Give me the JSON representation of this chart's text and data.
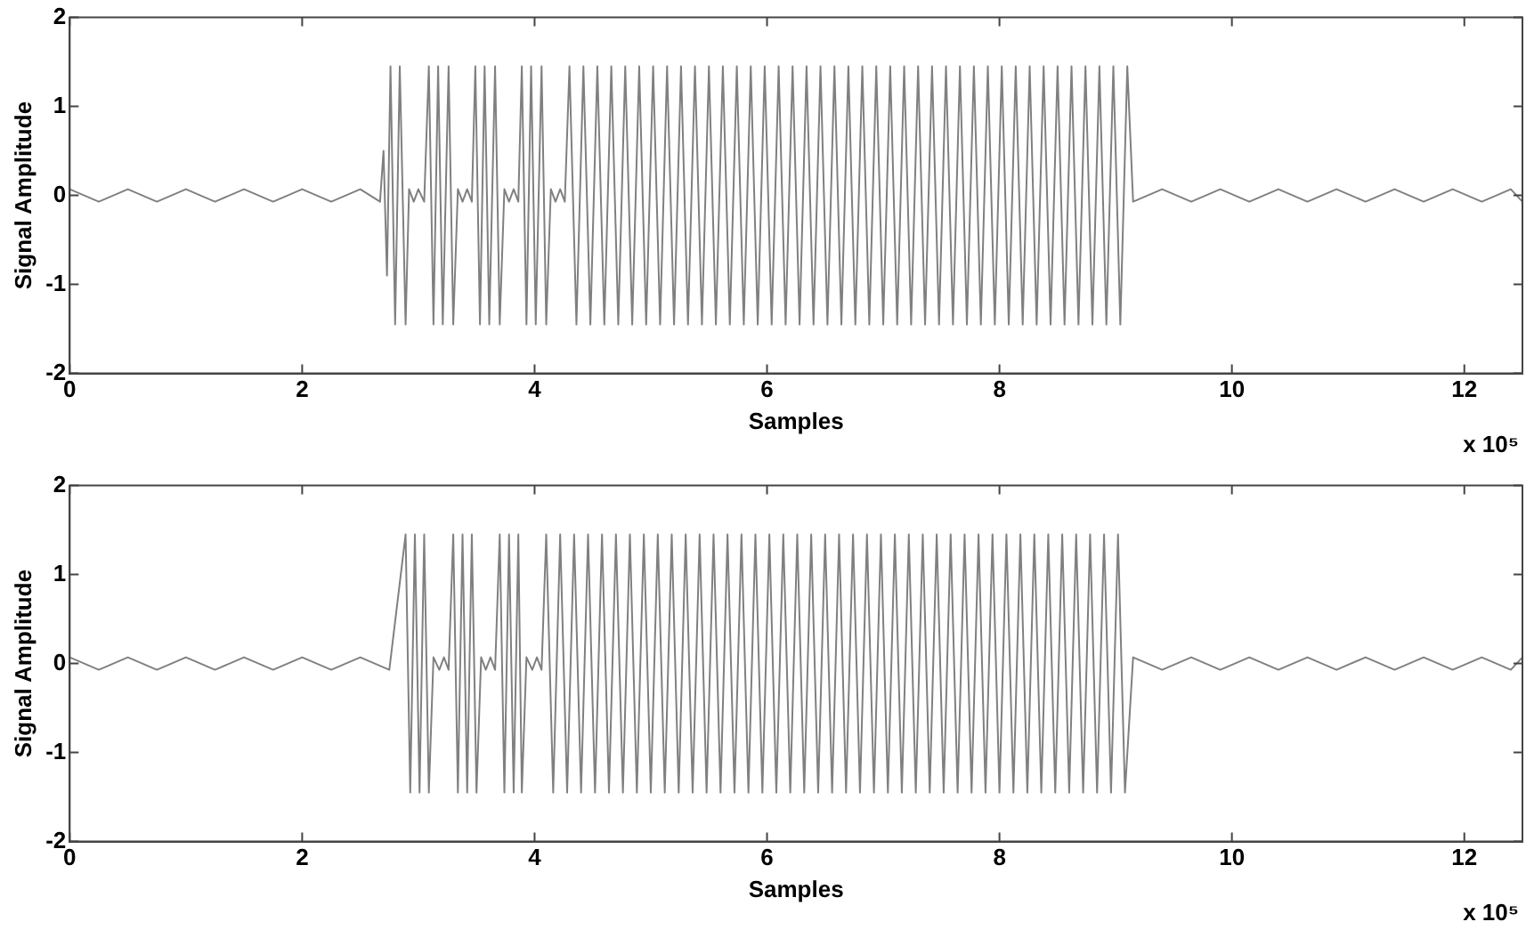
{
  "chart_data": [
    {
      "type": "line",
      "xlabel": "Samples",
      "ylabel": "Signal Amplitude",
      "annotations": [
        "x 10⁵"
      ],
      "xlim": [
        0,
        12.5
      ],
      "xticks": [
        0,
        2,
        4,
        6,
        8,
        10,
        12
      ],
      "ylim": [
        -2,
        2
      ],
      "yticks": [
        -2,
        -1,
        0,
        1,
        2
      ],
      "grid": false,
      "marker": "none",
      "line_style": "solid",
      "series": [
        {
          "color": "#808080",
          "x": [
            0,
            0.25,
            0.5,
            0.75,
            1,
            1.25,
            1.5,
            1.75,
            2,
            2.25,
            2.5,
            2.67,
            2.7,
            2.73,
            2.76,
            2.8,
            2.84,
            2.89,
            2.92,
            2.96,
            3,
            3.05,
            3.09,
            3.13,
            3.17,
            3.21,
            3.26,
            3.3,
            3.34,
            3.38,
            3.42,
            3.46,
            3.49,
            3.53,
            3.57,
            3.61,
            3.66,
            3.7,
            3.74,
            3.78,
            3.82,
            3.86,
            3.89,
            3.93,
            3.97,
            4.01,
            4.06,
            4.1,
            4.14,
            4.18,
            4.22,
            4.26,
            4.3,
            4.36,
            4.42,
            4.48,
            4.54,
            4.6,
            4.66,
            4.72,
            4.78,
            4.84,
            4.9,
            4.96,
            5.02,
            5.08,
            5.14,
            5.2,
            5.26,
            5.32,
            5.38,
            5.44,
            5.5,
            5.56,
            5.62,
            5.68,
            5.74,
            5.8,
            5.86,
            5.92,
            5.98,
            6.04,
            6.1,
            6.16,
            6.22,
            6.28,
            6.34,
            6.4,
            6.46,
            6.52,
            6.58,
            6.64,
            6.7,
            6.76,
            6.82,
            6.88,
            6.94,
            7,
            7.06,
            7.12,
            7.18,
            7.24,
            7.3,
            7.36,
            7.42,
            7.48,
            7.54,
            7.6,
            7.66,
            7.72,
            7.78,
            7.84,
            7.9,
            7.96,
            8.02,
            8.08,
            8.14,
            8.2,
            8.26,
            8.32,
            8.38,
            8.44,
            8.5,
            8.56,
            8.62,
            8.68,
            8.74,
            8.8,
            8.86,
            8.92,
            8.98,
            9.04,
            9.1,
            9.15,
            9.4,
            9.65,
            9.9,
            10.15,
            10.4,
            10.65,
            10.9,
            11.15,
            11.4,
            11.65,
            11.9,
            12.15,
            12.4,
            12.5
          ],
          "values": [
            0.07,
            -0.07,
            0.07,
            -0.07,
            0.07,
            -0.07,
            0.07,
            -0.07,
            0.07,
            -0.07,
            0.07,
            -0.07,
            0.5,
            -0.9,
            1.45,
            -1.45,
            1.45,
            -1.45,
            0.07,
            -0.07,
            0.07,
            -0.07,
            1.45,
            -1.45,
            1.45,
            -1.45,
            1.45,
            -1.45,
            0.07,
            -0.07,
            0.07,
            -0.07,
            1.45,
            -1.45,
            1.45,
            -1.45,
            1.45,
            -1.45,
            0.07,
            -0.07,
            0.07,
            -0.07,
            1.45,
            -1.45,
            1.45,
            -1.45,
            1.45,
            -1.45,
            0.07,
            -0.07,
            0.07,
            -0.07,
            1.45,
            -1.45,
            1.45,
            -1.45,
            1.45,
            -1.45,
            1.45,
            -1.45,
            1.45,
            -1.45,
            1.45,
            -1.45,
            1.45,
            -1.45,
            1.45,
            -1.45,
            1.45,
            -1.45,
            1.45,
            -1.45,
            1.45,
            -1.45,
            1.45,
            -1.45,
            1.45,
            -1.45,
            1.45,
            -1.45,
            1.45,
            -1.45,
            1.45,
            -1.45,
            1.45,
            -1.45,
            1.45,
            -1.45,
            1.45,
            -1.45,
            1.45,
            -1.45,
            1.45,
            -1.45,
            1.45,
            -1.45,
            1.45,
            -1.45,
            1.45,
            -1.45,
            1.45,
            -1.45,
            1.45,
            -1.45,
            1.45,
            -1.45,
            1.45,
            -1.45,
            1.45,
            -1.45,
            1.45,
            -1.45,
            1.45,
            -1.45,
            1.45,
            -1.45,
            1.45,
            -1.45,
            1.45,
            -1.45,
            1.45,
            -1.45,
            1.45,
            -1.45,
            1.45,
            -1.45,
            1.45,
            -1.45,
            1.45,
            -1.45,
            1.45,
            -1.45,
            1.45,
            -0.07,
            0.07,
            -0.07,
            0.07,
            -0.07,
            0.07,
            -0.07,
            0.07,
            -0.07,
            0.07,
            -0.07,
            0.07,
            -0.07,
            0.07,
            -0.07
          ]
        }
      ]
    },
    {
      "type": "line",
      "xlabel": "Samples",
      "ylabel": "Signal Amplitude",
      "annotations": [
        "x 10⁵"
      ],
      "xlim": [
        0,
        12.5
      ],
      "xticks": [
        0,
        2,
        4,
        6,
        8,
        10,
        12
      ],
      "ylim": [
        -2,
        2
      ],
      "yticks": [
        -2,
        -1,
        0,
        1,
        2
      ],
      "grid": false,
      "marker": "none",
      "line_style": "solid",
      "series": [
        {
          "color": "#808080",
          "x": [
            0,
            0.25,
            0.5,
            0.75,
            1,
            1.25,
            1.5,
            1.75,
            2,
            2.25,
            2.5,
            2.75,
            2.89,
            2.93,
            2.97,
            3.01,
            3.05,
            3.09,
            3.13,
            3.18,
            3.22,
            3.26,
            3.3,
            3.34,
            3.38,
            3.42,
            3.46,
            3.5,
            3.54,
            3.58,
            3.62,
            3.66,
            3.7,
            3.74,
            3.78,
            3.82,
            3.86,
            3.89,
            3.93,
            3.98,
            4.02,
            4.06,
            4.1,
            4.16,
            4.22,
            4.28,
            4.34,
            4.4,
            4.46,
            4.52,
            4.58,
            4.64,
            4.7,
            4.76,
            4.82,
            4.88,
            4.94,
            5,
            5.06,
            5.12,
            5.18,
            5.24,
            5.3,
            5.36,
            5.42,
            5.48,
            5.54,
            5.6,
            5.66,
            5.72,
            5.78,
            5.84,
            5.9,
            5.96,
            6.02,
            6.08,
            6.14,
            6.2,
            6.26,
            6.32,
            6.38,
            6.44,
            6.5,
            6.56,
            6.62,
            6.68,
            6.74,
            6.8,
            6.86,
            6.92,
            6.98,
            7.04,
            7.1,
            7.16,
            7.22,
            7.28,
            7.34,
            7.4,
            7.46,
            7.52,
            7.58,
            7.64,
            7.7,
            7.76,
            7.82,
            7.88,
            7.94,
            8,
            8.06,
            8.12,
            8.18,
            8.24,
            8.3,
            8.36,
            8.42,
            8.48,
            8.54,
            8.6,
            8.66,
            8.72,
            8.78,
            8.84,
            8.9,
            8.96,
            9.02,
            9.08,
            9.15,
            9.4,
            9.65,
            9.9,
            10.15,
            10.4,
            10.65,
            10.9,
            11.15,
            11.4,
            11.65,
            11.9,
            12.15,
            12.4,
            12.5
          ],
          "values": [
            0.07,
            -0.07,
            0.07,
            -0.07,
            0.07,
            -0.07,
            0.07,
            -0.07,
            0.07,
            -0.07,
            0.07,
            -0.07,
            1.45,
            -1.45,
            1.45,
            -1.45,
            1.45,
            -1.45,
            0.07,
            -0.07,
            0.07,
            -0.07,
            1.45,
            -1.45,
            1.45,
            -1.45,
            1.45,
            -1.45,
            0.07,
            -0.07,
            0.07,
            -0.07,
            1.45,
            -1.45,
            1.45,
            -1.45,
            1.45,
            -1.45,
            0.07,
            -0.07,
            0.07,
            -0.07,
            1.45,
            -1.45,
            1.45,
            -1.45,
            1.45,
            -1.45,
            1.45,
            -1.45,
            1.45,
            -1.45,
            1.45,
            -1.45,
            1.45,
            -1.45,
            1.45,
            -1.45,
            1.45,
            -1.45,
            1.45,
            -1.45,
            1.45,
            -1.45,
            1.45,
            -1.45,
            1.45,
            -1.45,
            1.45,
            -1.45,
            1.45,
            -1.45,
            1.45,
            -1.45,
            1.45,
            -1.45,
            1.45,
            -1.45,
            1.45,
            -1.45,
            1.45,
            -1.45,
            1.45,
            -1.45,
            1.45,
            -1.45,
            1.45,
            -1.45,
            1.45,
            -1.45,
            1.45,
            -1.45,
            1.45,
            -1.45,
            1.45,
            -1.45,
            1.45,
            -1.45,
            1.45,
            -1.45,
            1.45,
            -1.45,
            1.45,
            -1.45,
            1.45,
            -1.45,
            1.45,
            -1.45,
            1.45,
            -1.45,
            1.45,
            -1.45,
            1.45,
            -1.45,
            1.45,
            -1.45,
            1.45,
            -1.45,
            1.45,
            -1.45,
            1.45,
            -1.45,
            1.45,
            -1.45,
            1.45,
            -1.45,
            0.07,
            -0.07,
            0.07,
            -0.07,
            0.07,
            -0.07,
            0.07,
            -0.07,
            0.07,
            -0.07,
            0.07,
            -0.07,
            0.07,
            -0.07,
            0.07
          ]
        }
      ]
    }
  ]
}
